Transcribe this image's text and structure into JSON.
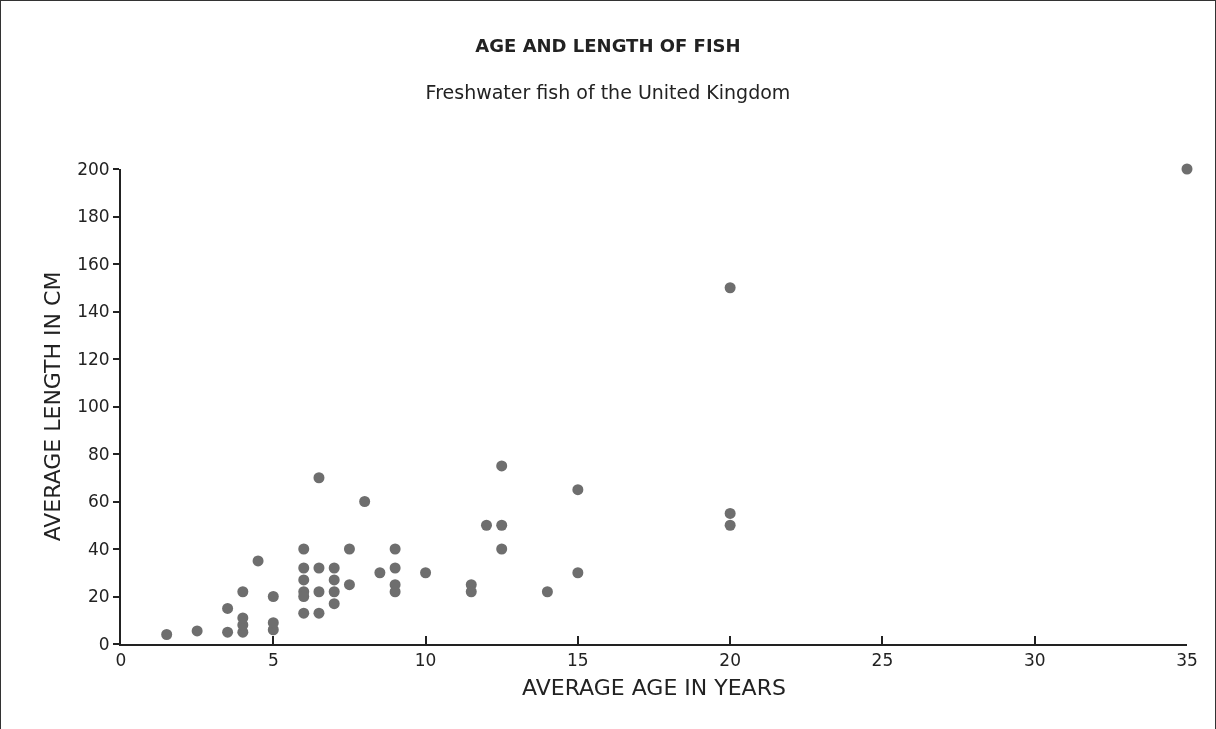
{
  "chart_data": {
    "type": "scatter",
    "title": "AGE AND LENGTH OF FISH",
    "subtitle": "Freshwater fish of the United Kingdom",
    "xlabel": "AVERAGE AGE IN YEARS",
    "ylabel": "AVERAGE LENGTH IN CM",
    "x": [
      1.5,
      2.5,
      3.5,
      3.5,
      4,
      4,
      4,
      4,
      4.5,
      5,
      5,
      5,
      6,
      6,
      6,
      6,
      6,
      6,
      6.5,
      6.5,
      6.5,
      6.5,
      7,
      7,
      7,
      7,
      7.5,
      7.5,
      8,
      8.5,
      9,
      9,
      9,
      9,
      10,
      11.5,
      11.5,
      12,
      12.5,
      12.5,
      12.5,
      14,
      15,
      15,
      20,
      20,
      20,
      35
    ],
    "values": [
      4,
      5.5,
      5,
      15,
      22,
      5,
      8,
      11,
      35,
      20,
      6,
      9,
      40,
      32,
      27,
      22,
      20,
      13,
      70,
      32,
      22,
      13,
      32,
      27,
      22,
      17,
      40,
      25,
      60,
      30,
      40,
      32,
      25,
      22,
      30,
      25,
      22,
      50,
      75,
      50,
      40,
      22,
      65,
      30,
      150,
      55,
      50,
      200
    ],
    "color": "#6e6e6e",
    "marker": "circle",
    "grid": false,
    "xlim": [
      0,
      35
    ],
    "xticks": [
      0,
      5,
      10,
      15,
      20,
      25,
      30,
      35
    ],
    "ylim": [
      0,
      200
    ],
    "yticks": [
      0,
      20,
      40,
      60,
      80,
      100,
      120,
      140,
      160,
      180,
      200
    ]
  }
}
